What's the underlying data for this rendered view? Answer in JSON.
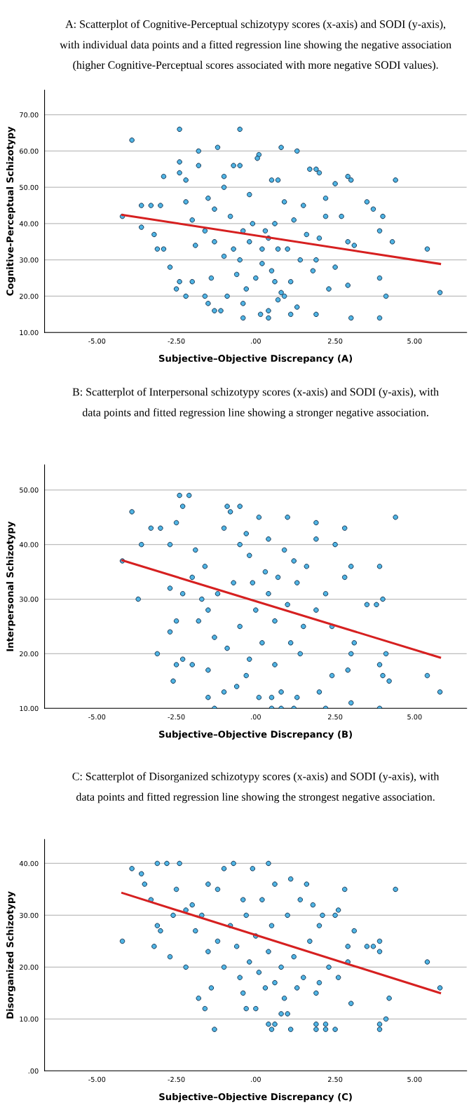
{
  "chart_data": [
    {
      "type": "scatter",
      "title": "A: Scatterplot of Cognitive-Perceptual schizotypy scores (x-axis) and SODI (y-axis),\nwith individual data points and a fitted regression line showing the negative association\n(higher Cognitive-Perceptual scores associated with more negative SODI values).",
      "xlabel": "Subjective–Objective Discrepancy (A)",
      "ylabel": "Cognitive-Perceptual Schizotypy",
      "xlim": [
        -6.65,
        6.64
      ],
      "xticks": [
        {
          "value": -5,
          "label": "-5.00"
        },
        {
          "value": -2.5,
          "label": "-2.50"
        },
        {
          "value": 0,
          "label": ".00"
        },
        {
          "value": 2.5,
          "label": "2.50"
        },
        {
          "value": 5,
          "label": "5.00"
        }
      ],
      "ylim": [
        10,
        76.8
      ],
      "yticks": [
        {
          "value": 10,
          "label": "10.00"
        },
        {
          "value": 20,
          "label": "20.00"
        },
        {
          "value": 30,
          "label": "30.00"
        },
        {
          "value": 40,
          "label": "40.00"
        },
        {
          "value": 50,
          "label": "50.00"
        },
        {
          "value": 60,
          "label": "60.00"
        },
        {
          "value": 70,
          "label": "70.00"
        }
      ],
      "grid": "y",
      "series": [
        {
          "marker": "circle",
          "color": "#4fb4e4",
          "x": [
            -3.9,
            -2.4,
            -0.5,
            -1.2,
            -1.8,
            0.8,
            1.3,
            0.1,
            0.05,
            -2.4,
            -1.8,
            -0.7,
            -0.5,
            -2.4,
            1.7,
            1.9,
            2.0,
            2.9,
            3.0,
            4.4,
            -2.9,
            -2.2,
            -1.0,
            0.5,
            0.7,
            -3.6,
            -3.3,
            -3.0,
            -4.2,
            -3.6,
            -3.2,
            -3.1,
            -2.9,
            -2.7,
            -2.4,
            -2.5,
            -2.2,
            -2.0,
            -1.6,
            -1.5,
            -1.3,
            -1.1,
            -0.4,
            -0.4,
            0.15,
            0.4,
            0.4,
            1.1,
            1.9,
            3.0,
            3.9,
            4.1,
            3.9,
            4.3,
            5.4,
            5.8,
            3.5,
            3.7,
            4.0,
            3.9,
            2.5,
            2.2,
            2.7,
            3.1,
            2.9,
            2.5,
            2.3,
            2.9,
            1.3,
            0.7,
            0.9,
            0.8,
            -0.9,
            -0.3,
            0.0,
            0.5,
            -0.5,
            0.2,
            -0.2,
            0.3,
            0.6,
            -0.8,
            -1.3,
            -1.5,
            -1.0,
            -0.2,
            0.9,
            1.5,
            1.2,
            1.6,
            1.0,
            1.4,
            1.8,
            -1.6,
            -1.9,
            -2.0,
            -2.2,
            -1.3,
            -1.0,
            -0.6,
            -1.4,
            0.2,
            0.6,
            1.1,
            1.9,
            2.0,
            2.2,
            -0.1,
            0.4,
            -0.4,
            -0.7,
            0.7
          ],
          "values": [
            63,
            66,
            66,
            61,
            60,
            61,
            60,
            59,
            58,
            57,
            56,
            56,
            56,
            54,
            55,
            55,
            54,
            53,
            52,
            52,
            53,
            52,
            53,
            52,
            52,
            45,
            45,
            45,
            42,
            39,
            37,
            33,
            33,
            28,
            24,
            22,
            20,
            24,
            20,
            18,
            16,
            16,
            14,
            18,
            15,
            14,
            16,
            15,
            15,
            14,
            14,
            20,
            25,
            35,
            33,
            21,
            46,
            44,
            42,
            38,
            51,
            47,
            42,
            34,
            35,
            28,
            22,
            23,
            17,
            19,
            20,
            21,
            20,
            22,
            25,
            27,
            30,
            33,
            35,
            38,
            40,
            42,
            44,
            47,
            50,
            48,
            46,
            45,
            41,
            37,
            33,
            30,
            27,
            38,
            34,
            41,
            46,
            35,
            31,
            26,
            25,
            29,
            24,
            24,
            30,
            36,
            42,
            40,
            36,
            38,
            33,
            33
          ]
        },
        {
          "type": "line",
          "color": "#d62020",
          "x": [
            -4.2,
            5.8
          ],
          "values": [
            42.4,
            28.9
          ]
        }
      ]
    },
    {
      "type": "scatter",
      "title": "B: Scatterplot of Interpersonal schizotypy scores (x-axis) and SODI (y-axis), with\ndata points and fitted regression line showing a stronger negative association.",
      "xlabel": "Subjective–Objective Discrepancy (B)",
      "ylabel": "Interpersonal Schizotypy",
      "xlim": [
        -6.65,
        6.64
      ],
      "xticks": [
        {
          "value": -5,
          "label": "-5.00"
        },
        {
          "value": -2.5,
          "label": "-2.50"
        },
        {
          "value": 0,
          "label": ".00"
        },
        {
          "value": 2.5,
          "label": "2.50"
        },
        {
          "value": 5,
          "label": "5.00"
        }
      ],
      "ylim": [
        10,
        54.6
      ],
      "yticks": [
        {
          "value": 10,
          "label": "10.00"
        },
        {
          "value": 20,
          "label": "20.00"
        },
        {
          "value": 30,
          "label": "30.00"
        },
        {
          "value": 40,
          "label": "40.00"
        },
        {
          "value": 50,
          "label": "50.00"
        }
      ],
      "grid": "y",
      "series": [
        {
          "marker": "circle",
          "color": "#4fb4e4",
          "x": [
            -3.9,
            -2.4,
            -2.1,
            -2.3,
            -0.9,
            -0.5,
            -0.8,
            0.1,
            1.9,
            1.0,
            4.4,
            -3.6,
            -3.7,
            -4.2,
            -3.3,
            -3.0,
            -2.7,
            -2.5,
            -2.7,
            -2.5,
            -2.7,
            -2.6,
            -3.1,
            -2.5,
            -2.3,
            -2.0,
            -1.5,
            -1.0,
            -1.5,
            -0.6,
            -0.3,
            0.1,
            0.5,
            0.8,
            1.3,
            -1.3,
            0.5,
            0.8,
            1.2,
            2.2,
            3.0,
            3.9,
            2.0,
            2.4,
            2.9,
            3.0,
            3.1,
            3.8,
            3.5,
            4.0,
            3.9,
            3.0,
            2.8,
            5.4,
            5.8,
            4.2,
            4.0,
            4.1,
            3.9,
            2.5,
            2.8,
            1.9,
            1.6,
            1.3,
            1.0,
            0.6,
            0.2,
            -0.2,
            0.6,
            1.1,
            1.5,
            1.9,
            2.2,
            2.4,
            -0.5,
            -0.2,
            0.3,
            -0.7,
            -1.2,
            -1.5,
            -1.8,
            -1.6,
            -1.9,
            -2.0,
            -1.0,
            -0.3,
            0.4,
            0.9,
            1.2,
            -1.3,
            -0.9,
            -0.5,
            0.0,
            0.4,
            -0.1,
            0.7,
            1.4,
            -1.7,
            -2.3
          ],
          "values": [
            46,
            49,
            49,
            47,
            47,
            47,
            46,
            45,
            44,
            45,
            45,
            40,
            30,
            37,
            43,
            43,
            40,
            44,
            32,
            26,
            24,
            15,
            20,
            18,
            19,
            18,
            17,
            13,
            12,
            14,
            16,
            12,
            12,
            13,
            12,
            10,
            10,
            10,
            10,
            10,
            11,
            10,
            13,
            16,
            17,
            20,
            22,
            29,
            29,
            30,
            36,
            36,
            34,
            16,
            13,
            15,
            16,
            20,
            18,
            40,
            43,
            41,
            36,
            33,
            29,
            26,
            22,
            19,
            18,
            22,
            25,
            28,
            31,
            25,
            40,
            38,
            35,
            33,
            31,
            28,
            26,
            36,
            39,
            34,
            43,
            42,
            41,
            39,
            37,
            23,
            21,
            25,
            28,
            31,
            33,
            34,
            20,
            30,
            31
          ]
        },
        {
          "type": "line",
          "color": "#d62020",
          "x": [
            -4.2,
            5.8
          ],
          "values": [
            37.1,
            19.3
          ]
        }
      ]
    },
    {
      "type": "scatter",
      "title": "C: Scatterplot of Disorganized schizotypy scores (x-axis) and SODI (y-axis), with\ndata points and fitted regression line showing the strongest negative association.",
      "xlabel": "Subjective–Objective Discrepancy (C)",
      "ylabel": "Disorganized Schizotypy",
      "xlim": [
        -6.65,
        6.64
      ],
      "xticks": [
        {
          "value": -5,
          "label": "-5.00"
        },
        {
          "value": -2.5,
          "label": "-2.50"
        },
        {
          "value": 0,
          "label": ".00"
        },
        {
          "value": 2.5,
          "label": "2.50"
        },
        {
          "value": 5,
          "label": "5.00"
        }
      ],
      "ylim": [
        0,
        44.6
      ],
      "yticks": [
        {
          "value": 0,
          "label": ".00"
        },
        {
          "value": 10,
          "label": "10.00"
        },
        {
          "value": 20,
          "label": "20.00"
        },
        {
          "value": 30,
          "label": "30.00"
        },
        {
          "value": 40,
          "label": "40.00"
        }
      ],
      "grid": "y",
      "series": [
        {
          "marker": "circle",
          "color": "#4fb4e4",
          "x": [
            -4.2,
            -3.9,
            -3.6,
            -3.5,
            -3.1,
            -2.8,
            -2.4,
            -3.3,
            -3.1,
            -3.0,
            -3.2,
            -2.7,
            -2.6,
            -2.2,
            -1.8,
            -1.6,
            -1.4,
            -1.3,
            -0.4,
            -0.3,
            0.0,
            0.3,
            0.4,
            0.5,
            0.6,
            0.8,
            1.0,
            1.1,
            1.9,
            2.2,
            1.9,
            2.2,
            2.5,
            3.0,
            3.9,
            3.9,
            4.1,
            4.2,
            5.4,
            5.8,
            4.4,
            3.9,
            3.9,
            3.5,
            3.7,
            2.9,
            3.1,
            2.8,
            2.5,
            2.9,
            2.6,
            2.3,
            2.0,
            1.9,
            1.5,
            1.3,
            0.9,
            0.6,
            0.1,
            -0.5,
            -0.2,
            -1.0,
            -1.5,
            -1.9,
            -2.2,
            -2.5,
            -2.0,
            -1.5,
            -1.0,
            -0.7,
            -0.1,
            0.4,
            0.6,
            0.2,
            -0.3,
            -0.8,
            -1.2,
            -0.6,
            0.0,
            0.5,
            1.0,
            1.4,
            1.6,
            1.8,
            2.0,
            1.7,
            1.2,
            0.8,
            0.4,
            -0.4,
            -1.2,
            -1.7,
            1.1,
            2.1,
            2.6
          ],
          "values": [
            25,
            39,
            38,
            36,
            40,
            40,
            40,
            33,
            28,
            27,
            24,
            22,
            30,
            20,
            14,
            12,
            16,
            8,
            15,
            12,
            12,
            16,
            9,
            8,
            9,
            11,
            11,
            8,
            9,
            9,
            8,
            8,
            8,
            13,
            8,
            9,
            10,
            14,
            21,
            16,
            35,
            25,
            23,
            24,
            24,
            24,
            27,
            35,
            30,
            21,
            18,
            20,
            17,
            15,
            18,
            16,
            14,
            17,
            19,
            18,
            21,
            20,
            23,
            27,
            31,
            35,
            32,
            36,
            39,
            40,
            39,
            40,
            36,
            33,
            30,
            28,
            25,
            24,
            26,
            28,
            30,
            33,
            36,
            32,
            28,
            25,
            22,
            20,
            23,
            33,
            35,
            30,
            37,
            30,
            31
          ]
        },
        {
          "type": "line",
          "color": "#d62020",
          "x": [
            -4.2,
            5.8
          ],
          "values": [
            34.3,
            15.0
          ]
        }
      ]
    }
  ]
}
